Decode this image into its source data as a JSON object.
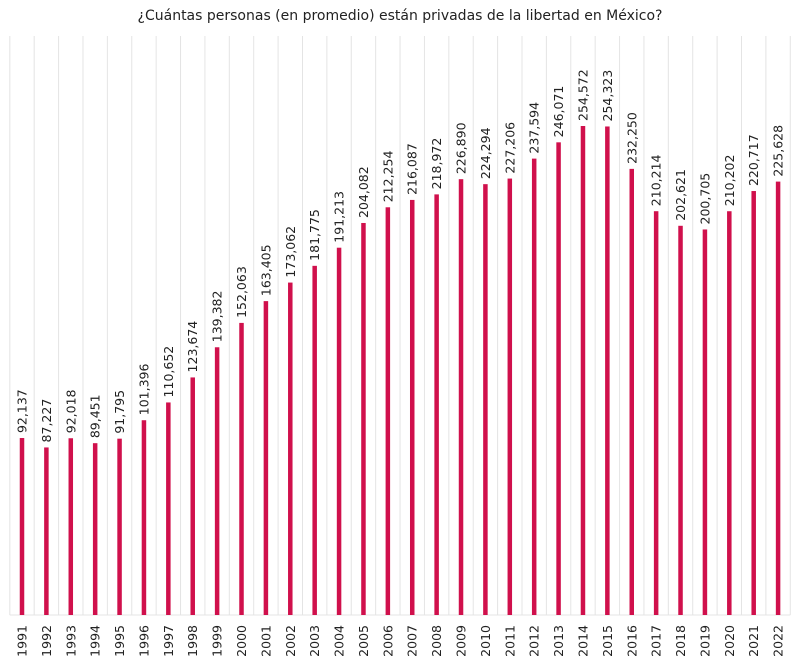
{
  "chart_data": {
    "type": "bar",
    "title": "¿Cuántas personas (en promedio) están privadas de la libertad en México?",
    "xlabel": "",
    "ylabel": "",
    "ylim": [
      0,
      254572
    ],
    "grid": "vertical",
    "bar_color": "#d0104c",
    "categories": [
      "1991",
      "1992",
      "1993",
      "1994",
      "1995",
      "1996",
      "1997",
      "1998",
      "1999",
      "2000",
      "2001",
      "2002",
      "2003",
      "2004",
      "2005",
      "2006",
      "2007",
      "2008",
      "2009",
      "2010",
      "2011",
      "2012",
      "2013",
      "2014",
      "2015",
      "2016",
      "2017",
      "2018",
      "2019",
      "2020",
      "2021",
      "2022"
    ],
    "values": [
      92137,
      87227,
      92018,
      89451,
      91795,
      101396,
      110652,
      123674,
      139382,
      152063,
      163405,
      173062,
      181775,
      191213,
      204082,
      212254,
      216087,
      218972,
      226890,
      224294,
      227206,
      237594,
      246071,
      254572,
      254323,
      232250,
      210214,
      202621,
      200705,
      210202,
      220717,
      225628
    ],
    "data_labels": [
      "92,137",
      "87,227",
      "92,018",
      "89,451",
      "91,795",
      "101,396",
      "110,652",
      "123,674",
      "139,382",
      "152,063",
      "163,405",
      "173,062",
      "181,775",
      "191,213",
      "204,082",
      "212,254",
      "216,087",
      "218,972",
      "226,890",
      "224,294",
      "227,206",
      "237,594",
      "246,071",
      "254,572",
      "254,323",
      "232,250",
      "210,214",
      "202,621",
      "200,705",
      "210,202",
      "220,717",
      "225,628"
    ]
  }
}
